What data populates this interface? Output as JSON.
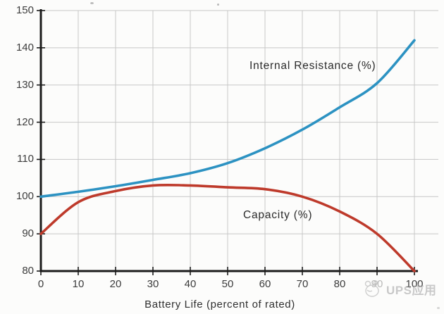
{
  "watermark": {
    "text": "UPS应用"
  },
  "artifacts": {
    "note": "faint jpeg specks near top edge and bottom-right corner"
  },
  "chart_data": {
    "type": "line",
    "title": "",
    "xlabel": "Battery Life (percent of rated)",
    "ylabel": "",
    "xlim": [
      0,
      100
    ],
    "ylim": [
      80,
      150
    ],
    "grid": true,
    "legend_position": "inline-annotations",
    "x_ticks": [
      0,
      10,
      20,
      30,
      40,
      50,
      60,
      70,
      80,
      90,
      100
    ],
    "y_ticks": [
      80,
      90,
      100,
      110,
      120,
      130,
      140,
      150
    ],
    "x": [
      0,
      10,
      20,
      30,
      40,
      50,
      60,
      70,
      80,
      90,
      100
    ],
    "series": [
      {
        "name": "Internal Resistance (%)",
        "color": "#2C92C2",
        "values": [
          100,
          101.3,
          102.8,
          104.5,
          106.3,
          109,
          113,
          118,
          124,
          130.5,
          142
        ]
      },
      {
        "name": "Capacity (%)",
        "color": "#BE3A2B",
        "values": [
          90,
          98.5,
          101.5,
          103,
          103,
          102.5,
          102,
          100,
          96,
          90,
          80
        ]
      }
    ],
    "axis_color": "#1b1b1b",
    "grid_color": "#c7c7c7",
    "tick_text_color": "#3c3c3c"
  }
}
